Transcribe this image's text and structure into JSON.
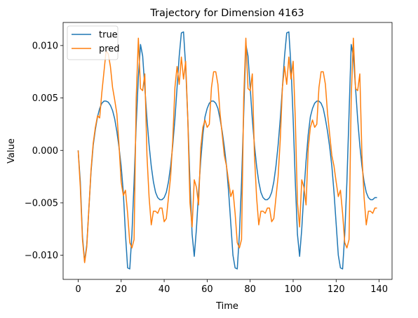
{
  "chart_data": {
    "type": "line",
    "title": "Trajectory for Dimension 4163",
    "xlabel": "Time",
    "ylabel": "Value",
    "xlim": [
      -7,
      146
    ],
    "ylim": [
      -0.0123,
      0.0122
    ],
    "x_ticks": [
      0,
      20,
      40,
      60,
      80,
      100,
      120,
      140
    ],
    "x_tick_labels": [
      "0",
      "20",
      "40",
      "60",
      "80",
      "100",
      "120",
      "140"
    ],
    "y_ticks": [
      -0.01,
      -0.005,
      0.0,
      0.005,
      0.01
    ],
    "y_tick_labels": [
      "−0.010",
      "−0.005",
      "0.000",
      "0.005",
      "0.010"
    ],
    "grid": false,
    "legend": "top-left",
    "series": [
      {
        "name": "true",
        "color": "#1f77b4",
        "points": [
          [
            0,
            0.0
          ],
          [
            1,
            -0.003
          ],
          [
            2,
            -0.0082
          ],
          [
            3,
            -0.0106
          ],
          [
            4,
            -0.009
          ],
          [
            5,
            -0.0055
          ],
          [
            6,
            -0.002
          ],
          [
            7,
            0.0005
          ],
          [
            8,
            0.002
          ],
          [
            9,
            0.0032
          ],
          [
            10,
            0.004
          ],
          [
            11,
            0.0045
          ],
          [
            12,
            0.0047
          ],
          [
            13,
            0.0047
          ],
          [
            14,
            0.0046
          ],
          [
            15,
            0.0043
          ],
          [
            16,
            0.0038
          ],
          [
            17,
            0.003
          ],
          [
            18,
            0.0018
          ],
          [
            19,
            0.0003
          ],
          [
            20,
            -0.0015
          ],
          [
            21,
            -0.004
          ],
          [
            22,
            -0.008
          ],
          [
            23,
            -0.0112
          ],
          [
            24,
            -0.0113
          ],
          [
            25,
            -0.008
          ],
          [
            26,
            -0.003
          ],
          [
            27,
            0.0025
          ],
          [
            28,
            0.007
          ],
          [
            29,
            0.0101
          ],
          [
            30,
            0.009
          ],
          [
            31,
            0.006
          ],
          [
            32,
            0.003
          ],
          [
            33,
            0.0005
          ],
          [
            34,
            -0.0015
          ],
          [
            35,
            -0.003
          ],
          [
            36,
            -0.004
          ],
          [
            37,
            -0.0045
          ],
          [
            38,
            -0.0047
          ],
          [
            39,
            -0.0047
          ],
          [
            40,
            -0.0045
          ],
          [
            41,
            -0.004
          ],
          [
            42,
            -0.003
          ],
          [
            43,
            -0.0015
          ],
          [
            44,
            0.0005
          ],
          [
            45,
            0.003
          ],
          [
            46,
            0.006
          ],
          [
            47,
            0.009
          ],
          [
            48,
            0.0112
          ],
          [
            49,
            0.0113
          ],
          [
            50,
            0.008
          ],
          [
            51,
            0.003
          ],
          [
            52,
            -0.003
          ],
          [
            53,
            -0.008
          ],
          [
            54,
            -0.0101
          ],
          [
            55,
            -0.0075
          ],
          [
            56,
            -0.004
          ],
          [
            57,
            -0.001
          ],
          [
            58,
            0.0015
          ],
          [
            59,
            0.0032
          ],
          [
            60,
            0.004
          ],
          [
            61,
            0.0045
          ],
          [
            62,
            0.0047
          ],
          [
            63,
            0.0047
          ],
          [
            64,
            0.0045
          ],
          [
            65,
            0.004
          ],
          [
            66,
            0.003
          ],
          [
            67,
            0.0018
          ],
          [
            68,
            0.0003
          ],
          [
            69,
            -0.0015
          ],
          [
            70,
            -0.004
          ],
          [
            71,
            -0.007
          ],
          [
            72,
            -0.01
          ],
          [
            73,
            -0.0112
          ],
          [
            74,
            -0.0113
          ],
          [
            75,
            -0.008
          ],
          [
            76,
            -0.003
          ],
          [
            77,
            0.0035
          ],
          [
            78,
            0.0101
          ],
          [
            79,
            0.009
          ],
          [
            80,
            0.006
          ],
          [
            81,
            0.003
          ],
          [
            82,
            0.0005
          ],
          [
            83,
            -0.0015
          ],
          [
            84,
            -0.003
          ],
          [
            85,
            -0.004
          ],
          [
            86,
            -0.0045
          ],
          [
            87,
            -0.0047
          ],
          [
            88,
            -0.0047
          ],
          [
            89,
            -0.0045
          ],
          [
            90,
            -0.004
          ],
          [
            91,
            -0.003
          ],
          [
            92,
            -0.0015
          ],
          [
            93,
            0.0005
          ],
          [
            94,
            0.003
          ],
          [
            95,
            0.006
          ],
          [
            96,
            0.009
          ],
          [
            97,
            0.0112
          ],
          [
            98,
            0.0113
          ],
          [
            99,
            0.008
          ],
          [
            100,
            0.003
          ],
          [
            101,
            -0.003
          ],
          [
            102,
            -0.008
          ],
          [
            103,
            -0.0101
          ],
          [
            104,
            -0.0075
          ],
          [
            105,
            -0.004
          ],
          [
            106,
            -0.001
          ],
          [
            107,
            0.0015
          ],
          [
            108,
            0.0032
          ],
          [
            109,
            0.004
          ],
          [
            110,
            0.0045
          ],
          [
            111,
            0.0047
          ],
          [
            112,
            0.0047
          ],
          [
            113,
            0.0045
          ],
          [
            114,
            0.004
          ],
          [
            115,
            0.003
          ],
          [
            116,
            0.0018
          ],
          [
            117,
            0.0003
          ],
          [
            118,
            -0.0015
          ],
          [
            119,
            -0.004
          ],
          [
            120,
            -0.007
          ],
          [
            121,
            -0.01
          ],
          [
            122,
            -0.0112
          ],
          [
            123,
            -0.0113
          ],
          [
            124,
            -0.008
          ],
          [
            125,
            -0.003
          ],
          [
            126,
            0.0035
          ],
          [
            127,
            0.0101
          ],
          [
            128,
            0.009
          ],
          [
            129,
            0.006
          ],
          [
            130,
            0.003
          ],
          [
            131,
            0.0005
          ],
          [
            132,
            -0.0015
          ],
          [
            133,
            -0.003
          ],
          [
            134,
            -0.004
          ],
          [
            135,
            -0.0045
          ],
          [
            136,
            -0.0047
          ],
          [
            137,
            -0.0047
          ],
          [
            138,
            -0.0045
          ],
          [
            139,
            -0.0045
          ]
        ]
      },
      {
        "name": "pred",
        "color": "#ff7f0e",
        "points": [
          [
            0,
            0.0
          ],
          [
            1,
            -0.0035
          ],
          [
            2,
            -0.0085
          ],
          [
            3,
            -0.0107
          ],
          [
            4,
            -0.0092
          ],
          [
            5,
            -0.0055
          ],
          [
            6,
            -0.0018
          ],
          [
            7,
            0.0007
          ],
          [
            8,
            0.0022
          ],
          [
            9,
            0.0033
          ],
          [
            10,
            0.0031
          ],
          [
            11,
            0.0055
          ],
          [
            12,
            0.0075
          ],
          [
            13,
            0.0095
          ],
          [
            14,
            0.0092
          ],
          [
            15,
            0.008
          ],
          [
            16,
            0.006
          ],
          [
            17,
            0.0048
          ],
          [
            18,
            0.0035
          ],
          [
            19,
            0.0005
          ],
          [
            20,
            -0.003
          ],
          [
            21,
            -0.0043
          ],
          [
            22,
            -0.0038
          ],
          [
            23,
            -0.006
          ],
          [
            24,
            -0.0088
          ],
          [
            25,
            -0.0093
          ],
          [
            26,
            -0.0085
          ],
          [
            27,
            0.005
          ],
          [
            28,
            0.0107
          ],
          [
            29,
            0.0059
          ],
          [
            30,
            0.0057
          ],
          [
            31,
            0.0073
          ],
          [
            32,
            -0.0005
          ],
          [
            33,
            -0.0045
          ],
          [
            34,
            -0.0071
          ],
          [
            35,
            -0.0058
          ],
          [
            36,
            -0.0058
          ],
          [
            37,
            -0.006
          ],
          [
            38,
            -0.0055
          ],
          [
            39,
            -0.0055
          ],
          [
            40,
            -0.0068
          ],
          [
            41,
            -0.0065
          ],
          [
            42,
            -0.0045
          ],
          [
            43,
            -0.0025
          ],
          [
            44,
            0.001
          ],
          [
            45,
            0.006
          ],
          [
            46,
            0.008
          ],
          [
            47,
            0.0063
          ],
          [
            48,
            0.0089
          ],
          [
            49,
            0.0068
          ],
          [
            50,
            0.0085
          ],
          [
            51,
            0.003
          ],
          [
            52,
            -0.005
          ],
          [
            53,
            -0.0073
          ],
          [
            54,
            -0.0028
          ],
          [
            55,
            -0.0035
          ],
          [
            56,
            -0.0052
          ],
          [
            57,
            0.0002
          ],
          [
            58,
            0.0022
          ],
          [
            59,
            0.0029
          ],
          [
            60,
            0.0022
          ],
          [
            61,
            0.0025
          ],
          [
            62,
            0.006
          ],
          [
            63,
            0.0075
          ],
          [
            64,
            0.0075
          ],
          [
            65,
            0.0063
          ],
          [
            66,
            0.0035
          ],
          [
            67,
            0.0015
          ],
          [
            68,
            -0.0005
          ],
          [
            69,
            -0.0015
          ],
          [
            70,
            -0.003
          ],
          [
            71,
            -0.0044
          ],
          [
            72,
            -0.0038
          ],
          [
            73,
            -0.006
          ],
          [
            74,
            -0.0088
          ],
          [
            75,
            -0.0093
          ],
          [
            76,
            -0.0085
          ],
          [
            77,
            0.005
          ],
          [
            78,
            0.0107
          ],
          [
            79,
            0.0059
          ],
          [
            80,
            0.0057
          ],
          [
            81,
            0.0073
          ],
          [
            82,
            -0.0005
          ],
          [
            83,
            -0.0045
          ],
          [
            84,
            -0.0071
          ],
          [
            85,
            -0.0058
          ],
          [
            86,
            -0.0058
          ],
          [
            87,
            -0.006
          ],
          [
            88,
            -0.0055
          ],
          [
            89,
            -0.0055
          ],
          [
            90,
            -0.0068
          ],
          [
            91,
            -0.0065
          ],
          [
            92,
            -0.0045
          ],
          [
            93,
            -0.0025
          ],
          [
            94,
            0.001
          ],
          [
            95,
            0.006
          ],
          [
            96,
            0.008
          ],
          [
            97,
            0.0063
          ],
          [
            98,
            0.0089
          ],
          [
            99,
            0.0068
          ],
          [
            100,
            0.0085
          ],
          [
            101,
            0.003
          ],
          [
            102,
            -0.005
          ],
          [
            103,
            -0.0073
          ],
          [
            104,
            -0.0028
          ],
          [
            105,
            -0.0035
          ],
          [
            106,
            -0.0052
          ],
          [
            107,
            0.0002
          ],
          [
            108,
            0.0022
          ],
          [
            109,
            0.0029
          ],
          [
            110,
            0.0022
          ],
          [
            111,
            0.0025
          ],
          [
            112,
            0.006
          ],
          [
            113,
            0.0075
          ],
          [
            114,
            0.0075
          ],
          [
            115,
            0.0063
          ],
          [
            116,
            0.0035
          ],
          [
            117,
            0.0015
          ],
          [
            118,
            -0.0005
          ],
          [
            119,
            -0.0015
          ],
          [
            120,
            -0.003
          ],
          [
            121,
            -0.0044
          ],
          [
            122,
            -0.0038
          ],
          [
            123,
            -0.006
          ],
          [
            124,
            -0.0088
          ],
          [
            125,
            -0.0093
          ],
          [
            126,
            -0.0085
          ],
          [
            127,
            0.005
          ],
          [
            128,
            0.0107
          ],
          [
            129,
            0.0059
          ],
          [
            130,
            0.0057
          ],
          [
            131,
            0.0073
          ],
          [
            132,
            -0.0005
          ],
          [
            133,
            -0.0045
          ],
          [
            134,
            -0.0071
          ],
          [
            135,
            -0.0058
          ],
          [
            136,
            -0.0058
          ],
          [
            137,
            -0.006
          ],
          [
            138,
            -0.0055
          ],
          [
            139,
            -0.0055
          ]
        ]
      }
    ]
  }
}
